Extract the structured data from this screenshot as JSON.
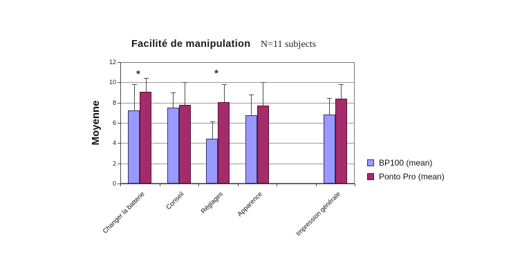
{
  "page": {
    "background": "#ffffff"
  },
  "chart_data": {
    "type": "bar",
    "title": "Facilité de manipulation",
    "subtitle": "N=11 subjects",
    "ylabel": "Moyenne",
    "xlabel": "",
    "ylim": [
      0,
      12
    ],
    "ytick_step": 2,
    "grid": true,
    "legend_position": "right-middle",
    "categories": [
      "Changer la batterie",
      "Conseil",
      "Réglages",
      "Apparence",
      "",
      "Impression générale"
    ],
    "series": [
      {
        "name": "BP100 (mean)",
        "color": "#9999FF",
        "border_color": "#333366",
        "values": [
          7.25,
          7.5,
          4.4,
          6.75,
          null,
          6.85
        ],
        "error_bar_top": [
          9.8,
          9.0,
          6.15,
          8.8,
          null,
          8.45
        ]
      },
      {
        "name": "Ponto Pro (mean)",
        "color": "#A52C6B",
        "border_color": "#551133",
        "values": [
          9.1,
          7.75,
          8.05,
          7.7,
          null,
          8.4
        ],
        "error_bar_top": [
          10.4,
          10.0,
          9.8,
          10.05,
          null,
          9.85
        ]
      }
    ],
    "annotations": [
      {
        "text": "*",
        "category_index": 0,
        "y_value": 10.9
      },
      {
        "text": "*",
        "category_index": 2,
        "y_value": 11.0
      }
    ],
    "colors": {
      "gridline": "#999999",
      "axis": "#4d4d4d",
      "plot_border": "#7a7a7a",
      "error_bar": "#4d4d4d",
      "text": "#1a1a1a"
    }
  }
}
